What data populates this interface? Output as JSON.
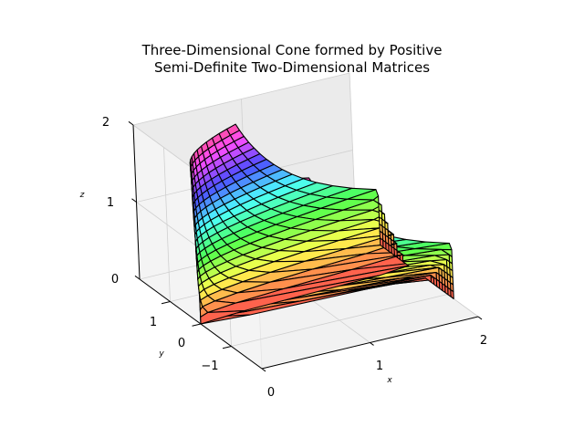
{
  "chart_data": {
    "type": "surface3d",
    "title_lines": [
      "Three-Dimensional Cone formed by Positive",
      "Semi-Definite Two-Dimensional Matrices"
    ],
    "xlabel": "x",
    "ylabel": "y",
    "zlabel": "z",
    "xlim": [
      0,
      2
    ],
    "ylim": [
      -2,
      2
    ],
    "zlim": [
      0,
      2
    ],
    "xticks": [
      "0",
      "1",
      "2"
    ],
    "yticks": [
      "−1",
      "0",
      "1"
    ],
    "zticks": [
      "0",
      "1",
      "2"
    ],
    "surface": {
      "definition": "boundary of the cone x >= 0, z >= 0, x*z >= y^2",
      "equation": "x*z = y^2",
      "z_range": [
        0,
        2
      ],
      "y_range": [
        -1.2,
        1.2
      ],
      "colormap": "hsv",
      "edge_color": "#000000"
    },
    "grid": true
  }
}
